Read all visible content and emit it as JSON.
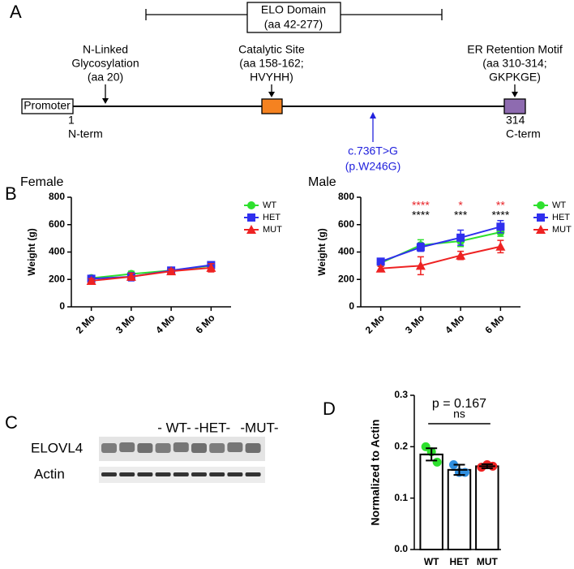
{
  "panel_labels": [
    "A",
    "B",
    "C",
    "D"
  ],
  "diagram": {
    "domain": {
      "title": "ELO Domain",
      "range": "(aa 42-277)"
    },
    "promoter": "Promoter",
    "features": [
      {
        "lines": [
          "N-Linked",
          "Glycosylation",
          "(aa 20)"
        ]
      },
      {
        "lines": [
          "Catalytic Site",
          "(aa 158-162;",
          "HVYHH)"
        ]
      },
      {
        "lines": [
          "ER Retention Motif",
          "(aa 310-314;",
          "GKPKGE)"
        ]
      }
    ],
    "start": {
      "position": 1,
      "label": "N-term"
    },
    "end": {
      "position": 314,
      "label": "C-term"
    },
    "mutation": [
      "c.736T>G",
      "(p.W246G)"
    ]
  },
  "blot": {
    "group_labels": [
      "- WT-",
      "-HET-",
      "-MUT-"
    ],
    "row_labels": [
      "ELOVL4",
      "Actin"
    ]
  },
  "chart_data": [
    {
      "type": "line",
      "title": "Female",
      "y_label": "Weight (g)",
      "categories": [
        "2 Mo",
        "3 Mo",
        "4 Mo",
        "6 Mo"
      ],
      "ylim": [
        0,
        800
      ],
      "yticks": [
        0,
        200,
        400,
        600,
        800
      ],
      "legend": "right",
      "series": [
        {
          "name": "WT",
          "color": "#2ee02e",
          "marker": "circle",
          "values": [
            210,
            240,
            265,
            300
          ],
          "errors": [
            15,
            20,
            15,
            15
          ]
        },
        {
          "name": "HET",
          "color": "#2f2fee",
          "marker": "square",
          "values": [
            205,
            220,
            265,
            305
          ],
          "errors": [
            15,
            30,
            15,
            20
          ]
        },
        {
          "name": "MUT",
          "color": "#ee2222",
          "marker": "triangle",
          "values": [
            190,
            220,
            260,
            285
          ],
          "errors": [
            15,
            25,
            15,
            30
          ]
        }
      ]
    },
    {
      "type": "line",
      "title": "Male",
      "y_label": "Weight (g)",
      "categories": [
        "2 Mo",
        "3 Mo",
        "4 Mo",
        "6 Mo"
      ],
      "ylim": [
        0,
        800
      ],
      "yticks": [
        0,
        200,
        400,
        600,
        800
      ],
      "legend": "right",
      "series": [
        {
          "name": "WT",
          "color": "#2ee02e",
          "marker": "circle",
          "values": [
            320,
            450,
            480,
            545
          ],
          "errors": [
            20,
            40,
            40,
            30
          ]
        },
        {
          "name": "HET",
          "color": "#2f2fee",
          "marker": "square",
          "values": [
            330,
            435,
            505,
            585
          ],
          "errors": [
            15,
            30,
            55,
            45
          ]
        },
        {
          "name": "MUT",
          "color": "#ee2222",
          "marker": "triangle",
          "values": [
            280,
            300,
            375,
            440
          ],
          "errors": [
            15,
            65,
            30,
            45
          ]
        }
      ],
      "significance_top": [
        null,
        "****",
        "*",
        "**"
      ],
      "significance_bottom": [
        null,
        "****",
        "***",
        "****"
      ],
      "significance_colors": [
        "#e8252a",
        "#000000"
      ]
    },
    {
      "type": "bar",
      "y_label": "Normalized to Actin",
      "categories": [
        "WT",
        "HET",
        "MUT"
      ],
      "values": [
        0.185,
        0.155,
        0.162
      ],
      "errors": [
        0.012,
        0.01,
        0.004
      ],
      "colors": [
        "#2ee02e",
        "#2f8fe0",
        "#ee2222"
      ],
      "points": [
        [
          0.2,
          0.19,
          0.17
        ],
        [
          0.165,
          0.15,
          0.15
        ],
        [
          0.16,
          0.165,
          0.162
        ]
      ],
      "ylim": [
        0,
        0.3
      ],
      "yticks": [
        {
          "value": 0,
          "label": "0.0"
        },
        0.1,
        0.2,
        0.3
      ],
      "p_value_label": "p = 0.167",
      "significance": "ns"
    }
  ]
}
